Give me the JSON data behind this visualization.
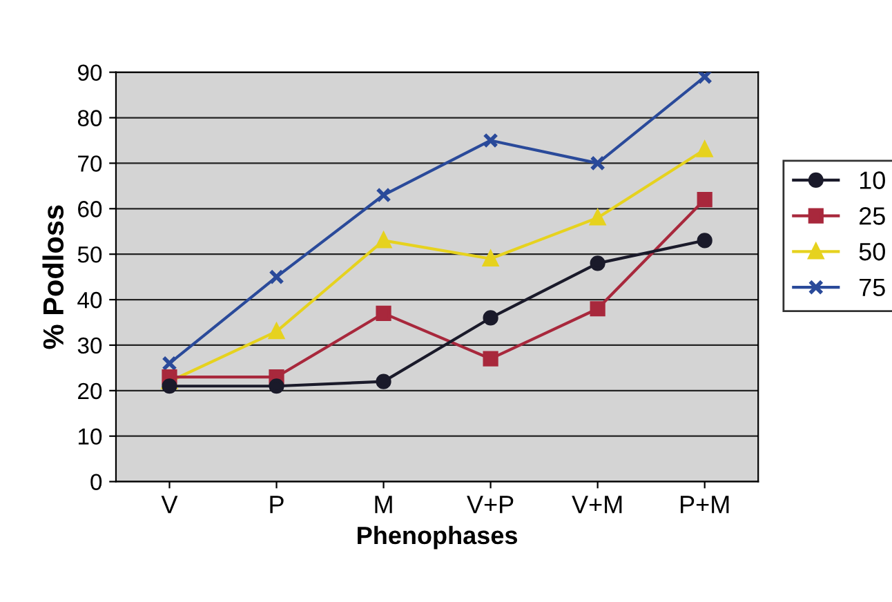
{
  "chart_data": {
    "type": "line",
    "xlabel": "Phenophases",
    "ylabel": "% Podloss",
    "categories": [
      "V",
      "P",
      "M",
      "V+P",
      "V+M",
      "P+M"
    ],
    "series": [
      {
        "name": "10",
        "color": "#1a1a2a",
        "marker": "circle",
        "values": [
          21,
          21,
          22,
          36,
          48,
          53
        ]
      },
      {
        "name": "25",
        "color": "#a8283c",
        "marker": "square",
        "values": [
          23,
          23,
          37,
          27,
          38,
          62
        ]
      },
      {
        "name": "50",
        "color": "#e6d21e",
        "marker": "triangle",
        "values": [
          22,
          33,
          53,
          49,
          58,
          73
        ]
      },
      {
        "name": "75",
        "color": "#2a4a9a",
        "marker": "cross",
        "values": [
          26,
          45,
          63,
          75,
          70,
          89
        ]
      }
    ],
    "ylim": [
      0,
      90
    ],
    "yticks": [
      0,
      10,
      20,
      30,
      40,
      50,
      60,
      70,
      80,
      90
    ],
    "grid": "y",
    "legend": "right",
    "line_style": "solid"
  }
}
